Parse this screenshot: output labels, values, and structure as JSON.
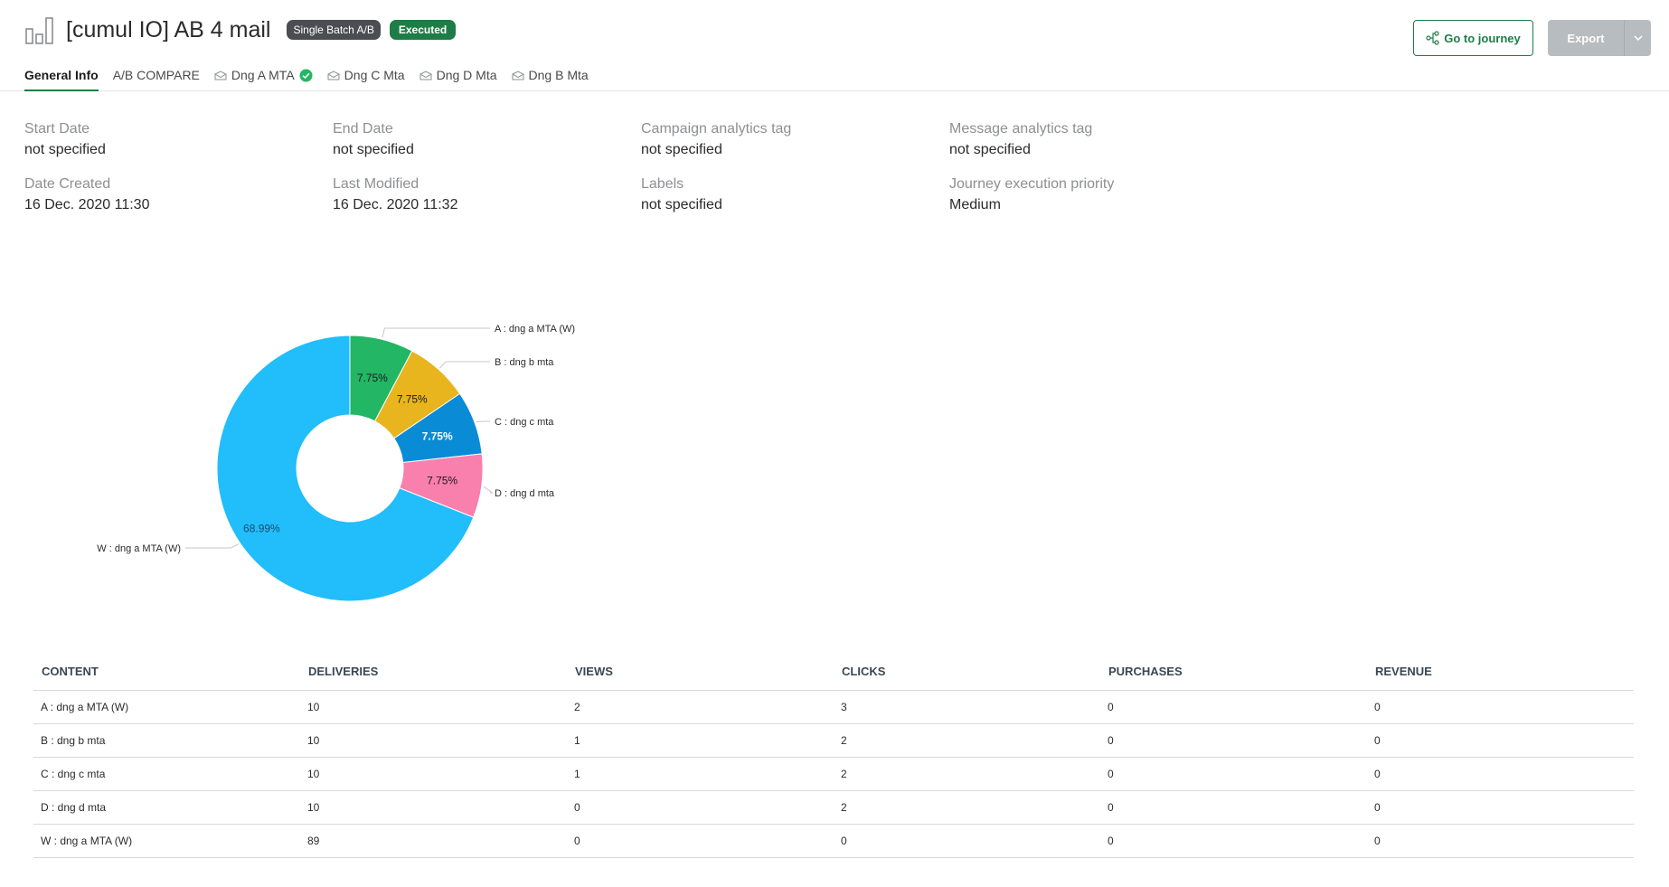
{
  "header": {
    "title": "[cumul IO] AB 4 mail",
    "badge_type": "Single Batch A/B",
    "badge_status": "Executed",
    "go_to_journey_label": "Go to journey",
    "export_label": "Export",
    "accent_color": "#1e7d46"
  },
  "tabs": [
    {
      "label": "General Info",
      "active": true
    },
    {
      "label": "A/B COMPARE"
    },
    {
      "label": "Dng A MTA",
      "icon": "mail-icon",
      "check": true
    },
    {
      "label": "Dng C Mta",
      "icon": "mail-icon"
    },
    {
      "label": "Dng D Mta",
      "icon": "mail-icon"
    },
    {
      "label": "Dng B Mta",
      "icon": "mail-icon"
    }
  ],
  "info": {
    "start_date": {
      "label": "Start Date",
      "value": "not specified"
    },
    "end_date": {
      "label": "End Date",
      "value": "not specified"
    },
    "campaign_tag": {
      "label": "Campaign analytics tag",
      "value": "not specified"
    },
    "message_tag": {
      "label": "Message analytics tag",
      "value": "not specified"
    },
    "date_created": {
      "label": "Date Created",
      "value": "16 Dec. 2020 11:30"
    },
    "last_modified": {
      "label": "Last Modified",
      "value": "16 Dec. 2020 11:32"
    },
    "labels": {
      "label": "Labels",
      "value": "not specified"
    },
    "priority": {
      "label": "Journey execution priority",
      "value": "Medium"
    }
  },
  "chart_data": {
    "type": "pie",
    "donut": true,
    "categories": [
      "A : dng a MTA (W)",
      "B : dng b mta",
      "C : dng c mta",
      "D : dng d mta",
      "W : dng a MTA (W)"
    ],
    "values": [
      7.75,
      7.75,
      7.75,
      7.75,
      68.99
    ],
    "labels": [
      "7.75%",
      "7.75%",
      "7.75%",
      "7.75%",
      "68.99%"
    ],
    "colors": [
      "#22b665",
      "#e8b51e",
      "#0a8bd6",
      "#f97fad",
      "#22bdfb"
    ]
  },
  "table": {
    "headers": [
      "CONTENT",
      "DELIVERIES",
      "VIEWS",
      "CLICKS",
      "PURCHASES",
      "REVENUE"
    ],
    "rows": [
      [
        "A : dng a MTA (W)",
        "10",
        "2",
        "3",
        "0",
        "0"
      ],
      [
        "B : dng b mta",
        "10",
        "1",
        "2",
        "0",
        "0"
      ],
      [
        "C : dng c mta",
        "10",
        "1",
        "2",
        "0",
        "0"
      ],
      [
        "D : dng d mta",
        "10",
        "0",
        "2",
        "0",
        "0"
      ],
      [
        "W : dng a MTA (W)",
        "89",
        "0",
        "0",
        "0",
        "0"
      ]
    ]
  }
}
